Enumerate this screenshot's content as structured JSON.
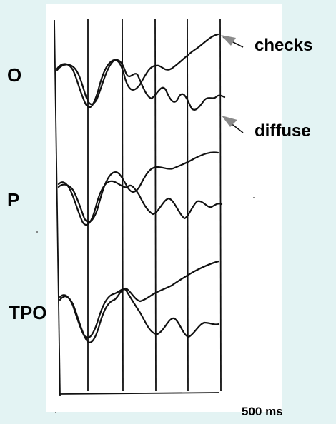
{
  "labels": {
    "channel_o": "O",
    "channel_p": "P",
    "channel_tpo": "TPO",
    "condition_checks": "checks",
    "condition_diffuse": "diffuse",
    "time_scale": "500 ms"
  },
  "colors": {
    "background": "#e3f3f3",
    "panel": "#ffffff",
    "ink": "#111111",
    "arrow_gray": "#8a8a8a"
  }
}
